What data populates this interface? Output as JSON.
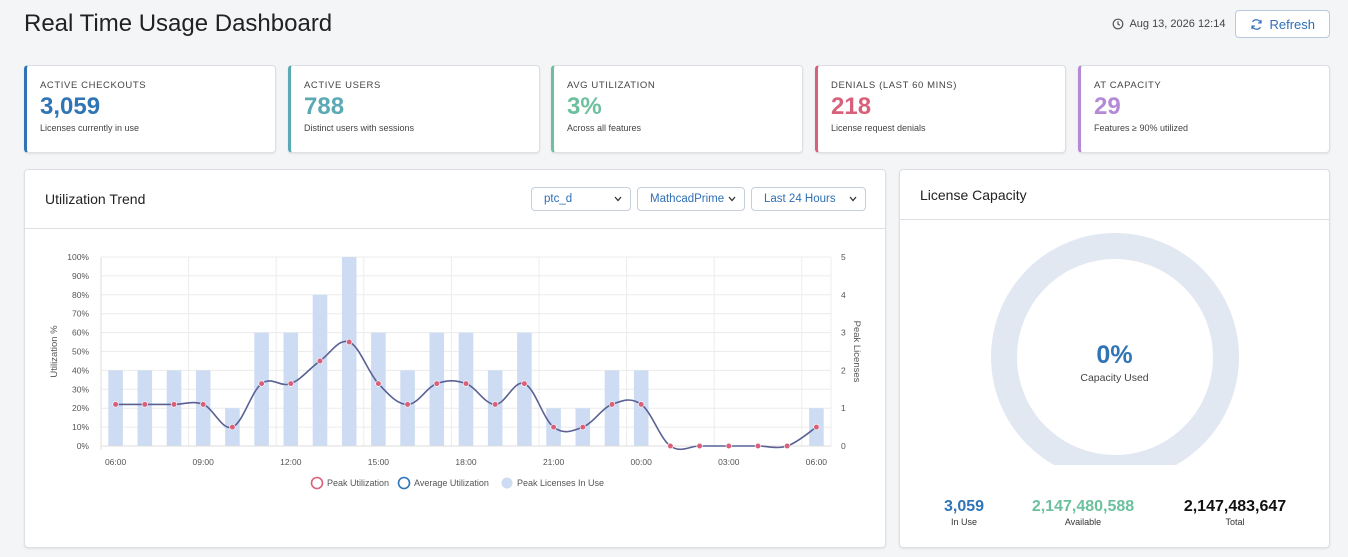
{
  "page": {
    "title": "Real Time Usage Dashboard",
    "timestamp": "Aug 13, 2026 12:14",
    "refresh_label": "Refresh"
  },
  "stats": [
    {
      "label": "ACTIVE CHECKOUTS",
      "value": "3,059",
      "sub": "Licenses currently in use",
      "color": "#2f75b5"
    },
    {
      "label": "ACTIVE USERS",
      "value": "788",
      "sub": "Distinct users with sessions",
      "color": "#5aa9b5"
    },
    {
      "label": "AVG UTILIZATION",
      "value": "3%",
      "sub": "Across all features",
      "color": "#6cc09e"
    },
    {
      "label": "DENIALS (LAST 60 MINS)",
      "value": "218",
      "sub": "License request denials",
      "color": "#d9607a"
    },
    {
      "label": "AT CAPACITY",
      "value": "29",
      "sub": "Features ≥ 90% utilized",
      "color": "#b48ad6"
    }
  ],
  "trend": {
    "title": "Utilization Trend",
    "filters": {
      "vendor": "ptc_d",
      "feature": "MathcadPrime",
      "range": "Last 24 Hours"
    }
  },
  "capacity": {
    "title": "License Capacity",
    "percent": "0%",
    "percent_label": "Capacity Used",
    "in_use": "3,059",
    "in_use_label": "In Use",
    "available": "2,147,480,588",
    "available_label": "Available",
    "total": "2,147,483,647",
    "total_label": "Total",
    "used_fraction": 0.0
  },
  "chart_data": {
    "type": "bar",
    "ylabel": "Utilization %",
    "y2label": "Peak Licenses",
    "ylim": [
      0,
      100
    ],
    "y2lim": [
      0,
      5
    ],
    "yticks": [
      "0%",
      "10%",
      "20%",
      "30%",
      "40%",
      "50%",
      "60%",
      "70%",
      "80%",
      "90%",
      "100%"
    ],
    "y2ticks": [
      "0",
      "1",
      "2",
      "3",
      "4",
      "5"
    ],
    "xticks": [
      {
        "label": "06:00",
        "index": 0
      },
      {
        "label": "09:00",
        "index": 3
      },
      {
        "label": "12:00",
        "index": 6
      },
      {
        "label": "15:00",
        "index": 9
      },
      {
        "label": "18:00",
        "index": 12
      },
      {
        "label": "21:00",
        "index": 15
      },
      {
        "label": "00:00",
        "index": 18
      },
      {
        "label": "03:00",
        "index": 21
      },
      {
        "label": "06:00",
        "index": 24
      }
    ],
    "legend_position": "bottom",
    "series": [
      {
        "name": "Peak Utilization",
        "color": "#d9607a",
        "values": [
          22,
          22,
          22,
          22,
          10,
          33,
          33,
          45,
          55,
          33,
          22,
          33,
          33,
          22,
          33,
          10,
          10,
          22,
          22,
          0,
          0,
          0,
          0,
          0,
          10
        ]
      },
      {
        "name": "Average Utilization",
        "color": "#2f75b5",
        "values": [
          22,
          22,
          22,
          22,
          10,
          33,
          33,
          45,
          55,
          33,
          22,
          33,
          33,
          22,
          33,
          10,
          10,
          22,
          22,
          0,
          0,
          0,
          0,
          0,
          10
        ]
      },
      {
        "name": "Peak Licenses In Use",
        "color": "#cddcf2",
        "axis": "right",
        "values": [
          2,
          2,
          2,
          2,
          1,
          3,
          3,
          4,
          5,
          3,
          2,
          3,
          3,
          2,
          3,
          1,
          1,
          2,
          2,
          0,
          0,
          0,
          0,
          0,
          1
        ]
      }
    ]
  }
}
